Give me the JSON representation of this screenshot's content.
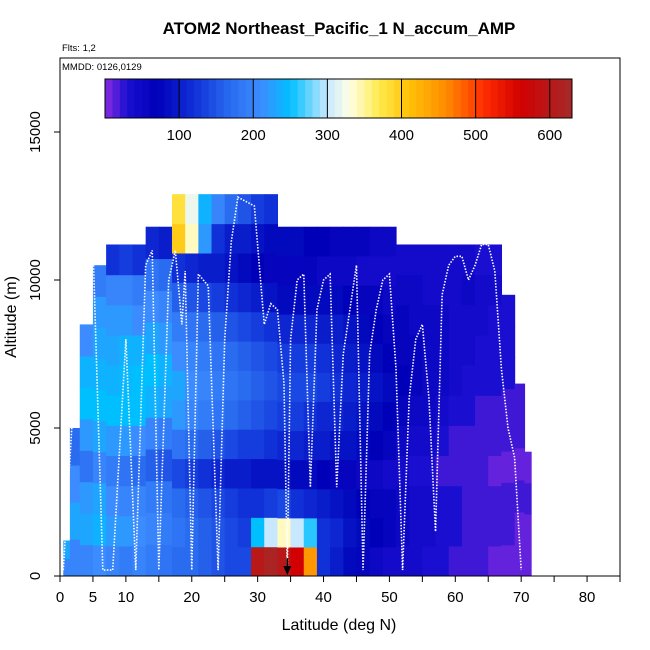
{
  "chart_data": {
    "type": "heatmap",
    "title": "ATOM2 Northeast_Pacific_1 N_accum_AMP",
    "annotations": {
      "flights": "Flts: 1,2",
      "dates": "MMDD: 0126,0129"
    },
    "xlabel": "Latitude (deg N)",
    "ylabel": "Altitude (m)",
    "xlim": [
      0,
      85
    ],
    "ylim": [
      0,
      17500
    ],
    "x_ticks": [
      0,
      5,
      10,
      15,
      20,
      25,
      30,
      35,
      40,
      45,
      50,
      55,
      60,
      65,
      70,
      75,
      80,
      85
    ],
    "x_tick_labels": [
      "0",
      "5",
      "10",
      "",
      "20",
      "",
      "30",
      "",
      "40",
      "",
      "50",
      "",
      "60",
      "",
      "70",
      "",
      "80",
      ""
    ],
    "y_ticks": [
      0,
      5000,
      10000,
      15000
    ],
    "y_tick_labels": [
      "0",
      "5000",
      "10000",
      "15000"
    ],
    "colorbar": {
      "range": [
        0,
        630
      ],
      "ticks": [
        100,
        200,
        300,
        400,
        500,
        600
      ],
      "tick_labels": [
        "100",
        "200",
        "300",
        "400",
        "500",
        "600"
      ],
      "stops": [
        {
          "v": 0,
          "c": "#8a2be2"
        },
        {
          "v": 30,
          "c": "#1a0fd0"
        },
        {
          "v": 70,
          "c": "#0000b8"
        },
        {
          "v": 120,
          "c": "#1030d8"
        },
        {
          "v": 170,
          "c": "#2a6cf0"
        },
        {
          "v": 210,
          "c": "#3c8cff"
        },
        {
          "v": 250,
          "c": "#00bfff"
        },
        {
          "v": 300,
          "c": "#c8e8ff"
        },
        {
          "v": 330,
          "c": "#ffffe6"
        },
        {
          "v": 370,
          "c": "#ffea4d"
        },
        {
          "v": 410,
          "c": "#ffc107"
        },
        {
          "v": 460,
          "c": "#ff8c00"
        },
        {
          "v": 510,
          "c": "#ff2d00"
        },
        {
          "v": 560,
          "c": "#d20000"
        },
        {
          "v": 630,
          "c": "#a52a2a"
        }
      ]
    },
    "columns": [
      {
        "lat": [
          0.5,
          1.5
        ],
        "ymax": 1200,
        "v": [
          200,
          230
        ]
      },
      {
        "lat": [
          1.5,
          3
        ],
        "ymax": 5000,
        "v": [
          200,
          230,
          210,
          170
        ]
      },
      {
        "lat": [
          3,
          5
        ],
        "ymax": 8500,
        "v": [
          200,
          230,
          220,
          180,
          220,
          250,
          240,
          210
        ]
      },
      {
        "lat": [
          5,
          7
        ],
        "ymax": 10500,
        "v": [
          210,
          240,
          230,
          200,
          230,
          250,
          240,
          230,
          220,
          190
        ]
      },
      {
        "lat": [
          7,
          9
        ],
        "ymax": 11200,
        "v": [
          200,
          220,
          210,
          190,
          220,
          250,
          240,
          230,
          220,
          200,
          120
        ]
      },
      {
        "lat": [
          9,
          11
        ],
        "ymax": 11200,
        "v": [
          190,
          220,
          200,
          180,
          220,
          250,
          245,
          240,
          220,
          200,
          130
        ]
      },
      {
        "lat": [
          11,
          13
        ],
        "ymax": 11200,
        "v": [
          200,
          210,
          200,
          170,
          210,
          250,
          250,
          240,
          210,
          190,
          120
        ]
      },
      {
        "lat": [
          13,
          15
        ],
        "ymax": 11800,
        "v": [
          190,
          200,
          190,
          160,
          200,
          240,
          250,
          230,
          210,
          180,
          110
        ]
      },
      {
        "lat": [
          15,
          17
        ],
        "ymax": 11800,
        "v": [
          180,
          190,
          180,
          150,
          190,
          230,
          240,
          220,
          200,
          170,
          100
        ]
      },
      {
        "lat": [
          17,
          19
        ],
        "ymax": 12900,
        "v": [
          170,
          180,
          170,
          140,
          180,
          220,
          230,
          210,
          190,
          160,
          120,
          400,
          380
        ]
      },
      {
        "lat": [
          19,
          21
        ],
        "ymax": 12900,
        "v": [
          170,
          170,
          160,
          130,
          170,
          200,
          210,
          200,
          180,
          150,
          110,
          340,
          320
        ]
      },
      {
        "lat": [
          21,
          23
        ],
        "ymax": 12900,
        "v": [
          160,
          160,
          150,
          120,
          160,
          190,
          200,
          190,
          170,
          140,
          100,
          220,
          240
        ]
      },
      {
        "lat": [
          23,
          25
        ],
        "ymax": 12900,
        "v": [
          150,
          150,
          140,
          110,
          150,
          180,
          190,
          180,
          160,
          130,
          100,
          120,
          200
        ]
      },
      {
        "lat": [
          25,
          27
        ],
        "ymax": 12900,
        "v": [
          140,
          140,
          130,
          100,
          140,
          170,
          180,
          170,
          150,
          120,
          90,
          100,
          170
        ]
      },
      {
        "lat": [
          27,
          29
        ],
        "ymax": 12900,
        "v": [
          140,
          130,
          120,
          100,
          130,
          160,
          170,
          160,
          140,
          110,
          80,
          100,
          150
        ]
      },
      {
        "lat": [
          29,
          31
        ],
        "ymax": 12900,
        "v": [
          600,
          250,
          120,
          90,
          130,
          150,
          160,
          150,
          130,
          100,
          70,
          90,
          130
        ]
      },
      {
        "lat": [
          31,
          33
        ],
        "ymax": 12900,
        "v": [
          620,
          300,
          130,
          90,
          120,
          140,
          150,
          140,
          120,
          90,
          60,
          80,
          120
        ]
      },
      {
        "lat": [
          33,
          35
        ],
        "ymax": 11800,
        "v": [
          600,
          340,
          140,
          90,
          110,
          130,
          140,
          130,
          110,
          80,
          60,
          80
        ]
      },
      {
        "lat": [
          35,
          37
        ],
        "ymax": 11800,
        "v": [
          560,
          300,
          120,
          80,
          110,
          130,
          140,
          130,
          110,
          80,
          60,
          80
        ]
      },
      {
        "lat": [
          37,
          39
        ],
        "ymax": 11800,
        "v": [
          450,
          260,
          110,
          80,
          100,
          120,
          140,
          130,
          110,
          80,
          60,
          70
        ]
      },
      {
        "lat": [
          39,
          41
        ],
        "ymax": 11800,
        "v": [
          120,
          120,
          100,
          70,
          100,
          110,
          130,
          120,
          100,
          80,
          50,
          70
        ]
      },
      {
        "lat": [
          41,
          43
        ],
        "ymax": 11800,
        "v": [
          100,
          110,
          90,
          60,
          90,
          110,
          120,
          110,
          100,
          80,
          50,
          60
        ]
      },
      {
        "lat": [
          43,
          45
        ],
        "ymax": 11800,
        "v": [
          80,
          90,
          80,
          60,
          90,
          100,
          110,
          100,
          90,
          70,
          50,
          60
        ]
      },
      {
        "lat": [
          45,
          47
        ],
        "ymax": 11800,
        "v": [
          60,
          80,
          70,
          50,
          80,
          90,
          100,
          90,
          80,
          60,
          40,
          60
        ]
      },
      {
        "lat": [
          47,
          49
        ],
        "ymax": 11800,
        "v": [
          50,
          70,
          60,
          50,
          70,
          80,
          90,
          80,
          70,
          60,
          40,
          50
        ]
      },
      {
        "lat": [
          49,
          51
        ],
        "ymax": 11800,
        "v": [
          40,
          60,
          60,
          40,
          60,
          70,
          80,
          70,
          60,
          50,
          40,
          50
        ]
      },
      {
        "lat": [
          51,
          53
        ],
        "ymax": 11200,
        "v": [
          40,
          50,
          50,
          40,
          50,
          60,
          70,
          60,
          60,
          50,
          40
        ]
      },
      {
        "lat": [
          53,
          55
        ],
        "ymax": 11200,
        "v": [
          40,
          40,
          40,
          30,
          40,
          50,
          60,
          60,
          50,
          50,
          40
        ]
      },
      {
        "lat": [
          55,
          57
        ],
        "ymax": 11200,
        "v": [
          30,
          40,
          40,
          30,
          40,
          50,
          50,
          50,
          50,
          40,
          40
        ]
      },
      {
        "lat": [
          57,
          59
        ],
        "ymax": 11200,
        "v": [
          30,
          30,
          30,
          20,
          30,
          40,
          50,
          50,
          50,
          40,
          40
        ]
      },
      {
        "lat": [
          59,
          61
        ],
        "ymax": 11200,
        "v": [
          20,
          30,
          30,
          20,
          20,
          30,
          40,
          40,
          40,
          40,
          40
        ]
      },
      {
        "lat": [
          61,
          63
        ],
        "ymax": 11200,
        "v": [
          20,
          20,
          20,
          20,
          20,
          30,
          30,
          40,
          40,
          50,
          40
        ]
      },
      {
        "lat": [
          63,
          65
        ],
        "ymax": 11200,
        "v": [
          20,
          20,
          20,
          20,
          20,
          20,
          30,
          30,
          40,
          40,
          30
        ]
      },
      {
        "lat": [
          65,
          67
        ],
        "ymax": 11200,
        "v": [
          10,
          20,
          20,
          10,
          20,
          20,
          30,
          30,
          30,
          40,
          30
        ]
      },
      {
        "lat": [
          67,
          69
        ],
        "ymax": 9500,
        "v": [
          10,
          20,
          20,
          10,
          20,
          20,
          30,
          30,
          30
        ]
      },
      {
        "lat": [
          69,
          70.5
        ],
        "ymax": 6500,
        "v": [
          10,
          10,
          20,
          10,
          20,
          20
        ]
      },
      {
        "lat": [
          70.5,
          71.5
        ],
        "ymax": 4200,
        "v": [
          10,
          10,
          20,
          10
        ]
      }
    ],
    "flight_track": [
      [
        0.5,
        200
      ],
      [
        2,
        5800
      ],
      [
        3,
        11200
      ],
      [
        5,
        11200
      ],
      [
        6.5,
        200
      ],
      [
        8,
        200
      ],
      [
        10,
        8000
      ],
      [
        11.5,
        200
      ],
      [
        13,
        10500
      ],
      [
        14,
        11000
      ],
      [
        15,
        200
      ],
      [
        16.5,
        10000
      ],
      [
        17.5,
        11000
      ],
      [
        18.5,
        8500
      ],
      [
        19,
        10300
      ],
      [
        20,
        200
      ],
      [
        21,
        10200
      ],
      [
        22.5,
        9800
      ],
      [
        24,
        200
      ],
      [
        25,
        8000
      ],
      [
        26,
        11300
      ],
      [
        27,
        12800
      ],
      [
        29.5,
        12500
      ],
      [
        31,
        8500
      ],
      [
        32,
        9200
      ],
      [
        33,
        9000
      ],
      [
        34,
        6500
      ],
      [
        34.5,
        200
      ],
      [
        35,
        8000
      ],
      [
        36,
        10000
      ],
      [
        37,
        10200
      ],
      [
        38,
        3000
      ],
      [
        39,
        9000
      ],
      [
        40,
        10000
      ],
      [
        41,
        10200
      ],
      [
        42,
        3000
      ],
      [
        43,
        7500
      ],
      [
        44,
        9000
      ],
      [
        45,
        10500
      ],
      [
        46,
        200
      ],
      [
        47,
        7500
      ],
      [
        48,
        9000
      ],
      [
        49,
        10000
      ],
      [
        50,
        10200
      ],
      [
        51,
        7000
      ],
      [
        52,
        200
      ],
      [
        53,
        6000
      ],
      [
        54,
        8000
      ],
      [
        55,
        8500
      ],
      [
        56,
        6000
      ],
      [
        57,
        1500
      ],
      [
        58,
        9500
      ],
      [
        59,
        10500
      ],
      [
        60,
        10800
      ],
      [
        61,
        10800
      ],
      [
        62,
        10000
      ],
      [
        63,
        10500
      ],
      [
        64,
        11200
      ],
      [
        65,
        11200
      ],
      [
        66,
        10300
      ],
      [
        67,
        7000
      ],
      [
        68,
        5000
      ],
      [
        69,
        4000
      ],
      [
        70,
        200
      ]
    ],
    "marker": {
      "lat": 34.5,
      "symbol": "arrow-down"
    }
  }
}
